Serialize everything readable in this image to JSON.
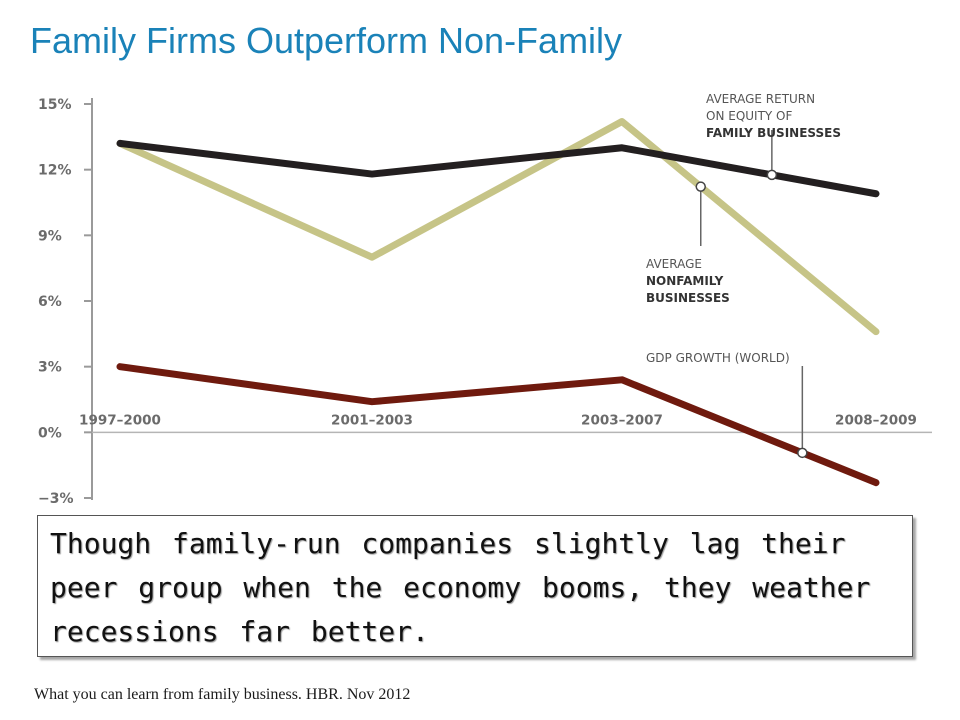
{
  "slide": {
    "title": "Family Firms Outperform Non-Family",
    "callout": "Though family-run companies slightly lag their peer group when the economy booms, they weather recessions far better.",
    "source": "What you can learn from family business. HBR. Nov 2012"
  },
  "chart_data": {
    "type": "line",
    "categories": [
      "1997–2000",
      "2001–2003",
      "2003–2007",
      "2008–2009"
    ],
    "ylim": [
      -3,
      15
    ],
    "yticks": [
      15,
      12,
      9,
      6,
      3,
      0,
      -3
    ],
    "ytick_labels": [
      "15%",
      "12%",
      "9%",
      "6%",
      "3%",
      "0%",
      "−3%"
    ],
    "grid": false,
    "series": [
      {
        "key": "family",
        "values": [
          13.2,
          11.8,
          13.0,
          10.9
        ],
        "color": "#231f20",
        "label_lines": [
          "AVERAGE RETURN",
          "ON EQUITY OF",
          "FAMILY BUSINESSES"
        ],
        "label_bold": [
          false,
          false,
          true
        ]
      },
      {
        "key": "nonfamily",
        "values": [
          13.2,
          8.0,
          14.2,
          4.6
        ],
        "color": "#c6c487",
        "label_lines": [
          "AVERAGE",
          "NONFAMILY",
          "BUSINESSES"
        ],
        "label_bold": [
          false,
          true,
          true
        ]
      },
      {
        "key": "gdp",
        "values": [
          3.0,
          1.4,
          2.4,
          -2.3
        ],
        "color": "#6f1a0e",
        "label_lines": [
          "GDP GROWTH (WORLD)"
        ],
        "label_bold": [
          false
        ]
      }
    ]
  }
}
